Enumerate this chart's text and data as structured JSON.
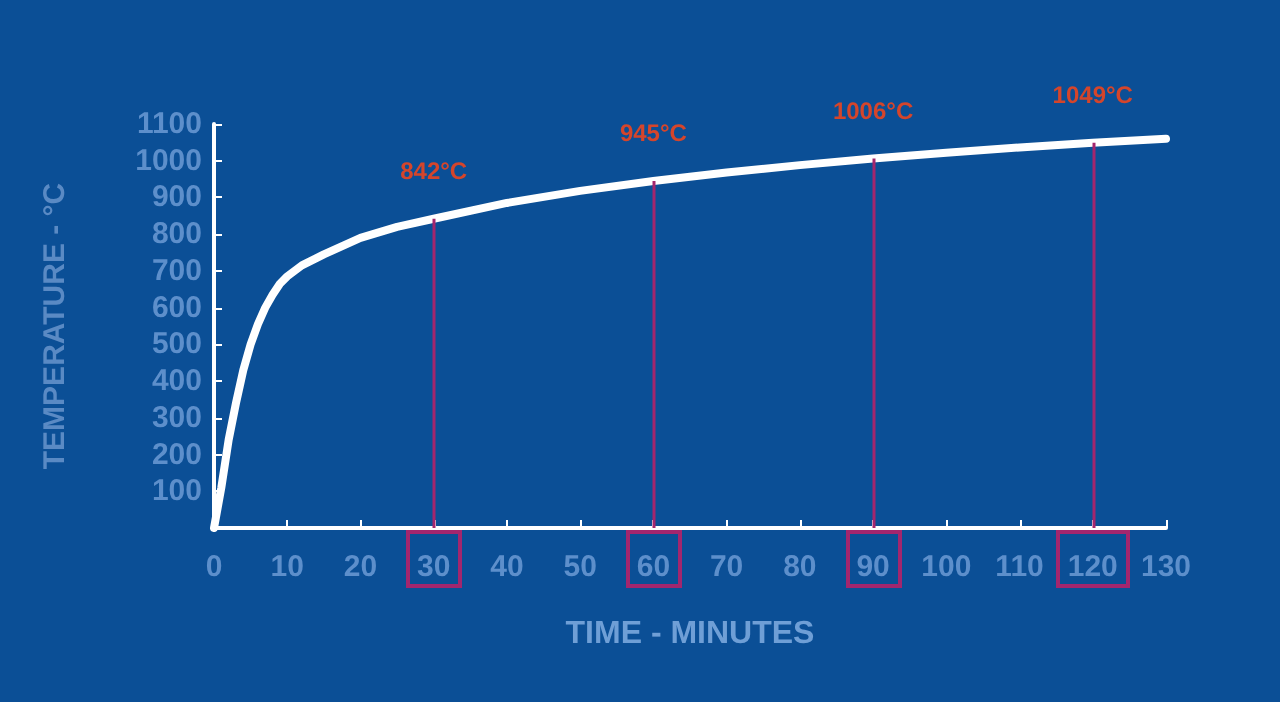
{
  "chart_data": {
    "type": "line",
    "xlabel": "TIME - MINUTES",
    "ylabel": "TEMPERATURE - °C",
    "x": [
      0,
      1,
      2,
      3,
      4,
      5,
      6,
      7,
      8,
      9,
      10,
      12,
      15,
      20,
      25,
      30,
      40,
      50,
      60,
      70,
      80,
      90,
      100,
      110,
      120,
      130
    ],
    "series": [
      {
        "color": "#ffffff",
        "values": [
          0,
          110,
          240,
          340,
          430,
          500,
          555,
          600,
          635,
          665,
          685,
          715,
          745,
          790,
          820,
          842,
          885,
          918,
          945,
          968,
          988,
          1006,
          1022,
          1036,
          1049,
          1060
        ]
      }
    ],
    "xlim": [
      0,
      130
    ],
    "xticks": [
      0,
      10,
      20,
      30,
      40,
      50,
      60,
      70,
      80,
      90,
      100,
      110,
      120,
      130
    ],
    "ylim": [
      0,
      1100
    ],
    "yticks": [
      {
        "value": 0,
        "label": null
      },
      100,
      200,
      300,
      400,
      500,
      600,
      700,
      800,
      900,
      1000,
      1100
    ],
    "ref_lines": [
      {
        "axis": "x",
        "value": 30,
        "label": "842°C",
        "color": "#a3266e"
      },
      {
        "axis": "x",
        "value": 60,
        "label": "945°C",
        "color": "#a3266e"
      },
      {
        "axis": "x",
        "value": 90,
        "label": "1006°C",
        "color": "#a3266e"
      },
      {
        "axis": "x",
        "value": 120,
        "label": "1049°C",
        "color": "#a3266e"
      }
    ],
    "grid": false,
    "marker": "none",
    "line_style": "solid"
  }
}
